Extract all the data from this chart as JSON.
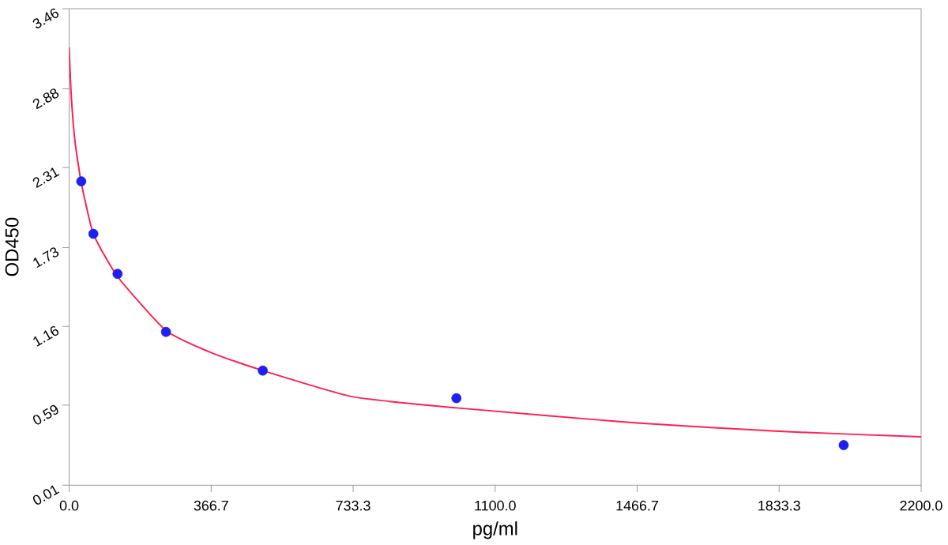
{
  "chart_data": {
    "type": "scatter",
    "xlabel": "pg/ml",
    "ylabel": "OD450",
    "xlim": [
      0,
      2200
    ],
    "ylim": [
      0.01,
      3.46
    ],
    "xticks": [
      {
        "value": 0,
        "label": "0.0"
      },
      {
        "value": 366.7,
        "label": "366.7"
      },
      {
        "value": 733.3,
        "label": "733.3"
      },
      {
        "value": 1100,
        "label": "1100.0"
      },
      {
        "value": 1466.7,
        "label": "1466.7"
      },
      {
        "value": 1833.3,
        "label": "1833.3"
      },
      {
        "value": 2200,
        "label": "2200.0"
      }
    ],
    "yticks": [
      0.01,
      0.59,
      1.16,
      1.73,
      2.31,
      2.88,
      3.46
    ],
    "grid": false,
    "series": [
      {
        "type": "line",
        "color": "#ff2050",
        "marker": "none",
        "x": [
          0,
          5,
          15,
          31.25,
          62.5,
          125,
          250,
          375,
          500,
          733,
          1000,
          1466.7,
          1833,
          2200
        ],
        "values": [
          3.18,
          2.85,
          2.5,
          2.2,
          1.83,
          1.52,
          1.13,
          0.96,
          0.84,
          0.65,
          0.57,
          0.46,
          0.4,
          0.36
        ]
      },
      {
        "color": "#2020ee",
        "marker": "circle",
        "x": [
          31.25,
          62.5,
          125,
          250,
          500,
          1000,
          2000
        ],
        "values": [
          2.21,
          1.83,
          1.54,
          1.12,
          0.84,
          0.64,
          0.3
        ]
      }
    ]
  }
}
